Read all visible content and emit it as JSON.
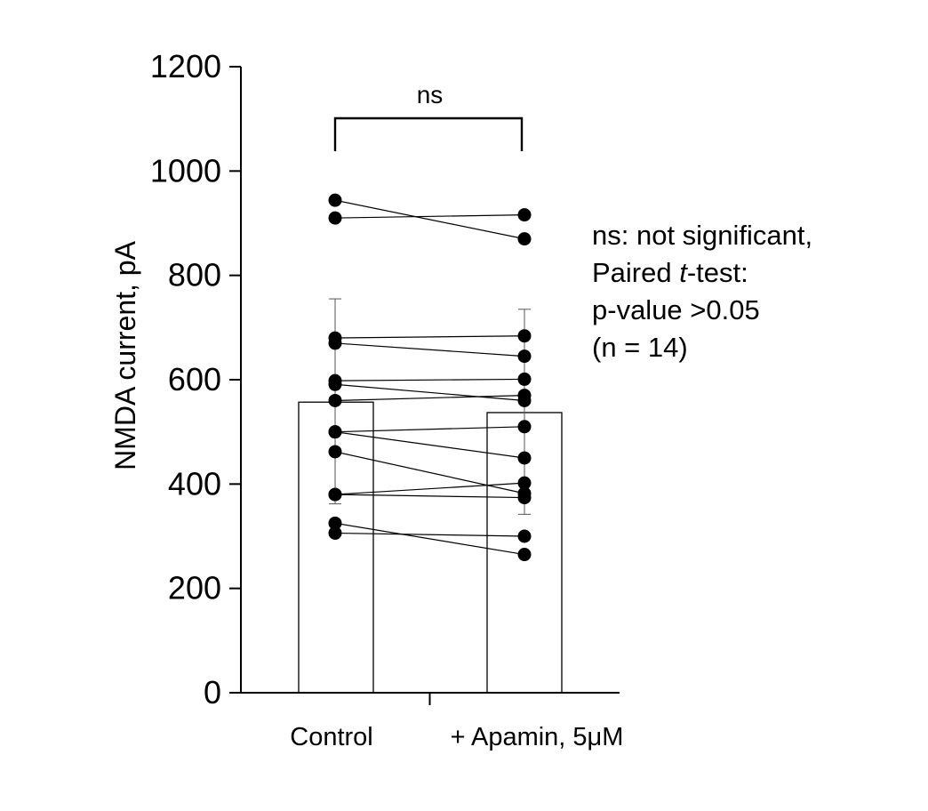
{
  "chart_data": {
    "type": "bar",
    "title": "",
    "xlabel": "",
    "ylabel": "NMDA current, pA",
    "ylim": [
      0,
      1200
    ],
    "yticks": [
      "0",
      "200",
      "400",
      "600",
      "800",
      "1000",
      "1200"
    ],
    "categories": [
      "Control",
      "+ Apamin, 5μM"
    ],
    "values": [
      557,
      537
    ],
    "error_bars": [
      {
        "low": 362,
        "high": 755
      },
      {
        "low": 342,
        "high": 735
      }
    ],
    "paired_points": [
      [
        944,
        870
      ],
      [
        910,
        916
      ],
      [
        680,
        684
      ],
      [
        670,
        645
      ],
      [
        598,
        601
      ],
      [
        591,
        560
      ],
      [
        560,
        570
      ],
      [
        500,
        510
      ],
      [
        500,
        450
      ],
      [
        462,
        382
      ],
      [
        380,
        402
      ],
      [
        380,
        374
      ],
      [
        325,
        265
      ],
      [
        306,
        300
      ]
    ],
    "significance_label": "ns",
    "grid": false,
    "marker_color": "#000000",
    "bar_fill": "#ffffff"
  },
  "annotation": {
    "line1": "ns: not significant,",
    "line2_prefix": "Paired ",
    "line2_italic": "t",
    "line2_suffix": "-test:",
    "line3": "p-value >0.05",
    "line4": "(n = 14)"
  }
}
